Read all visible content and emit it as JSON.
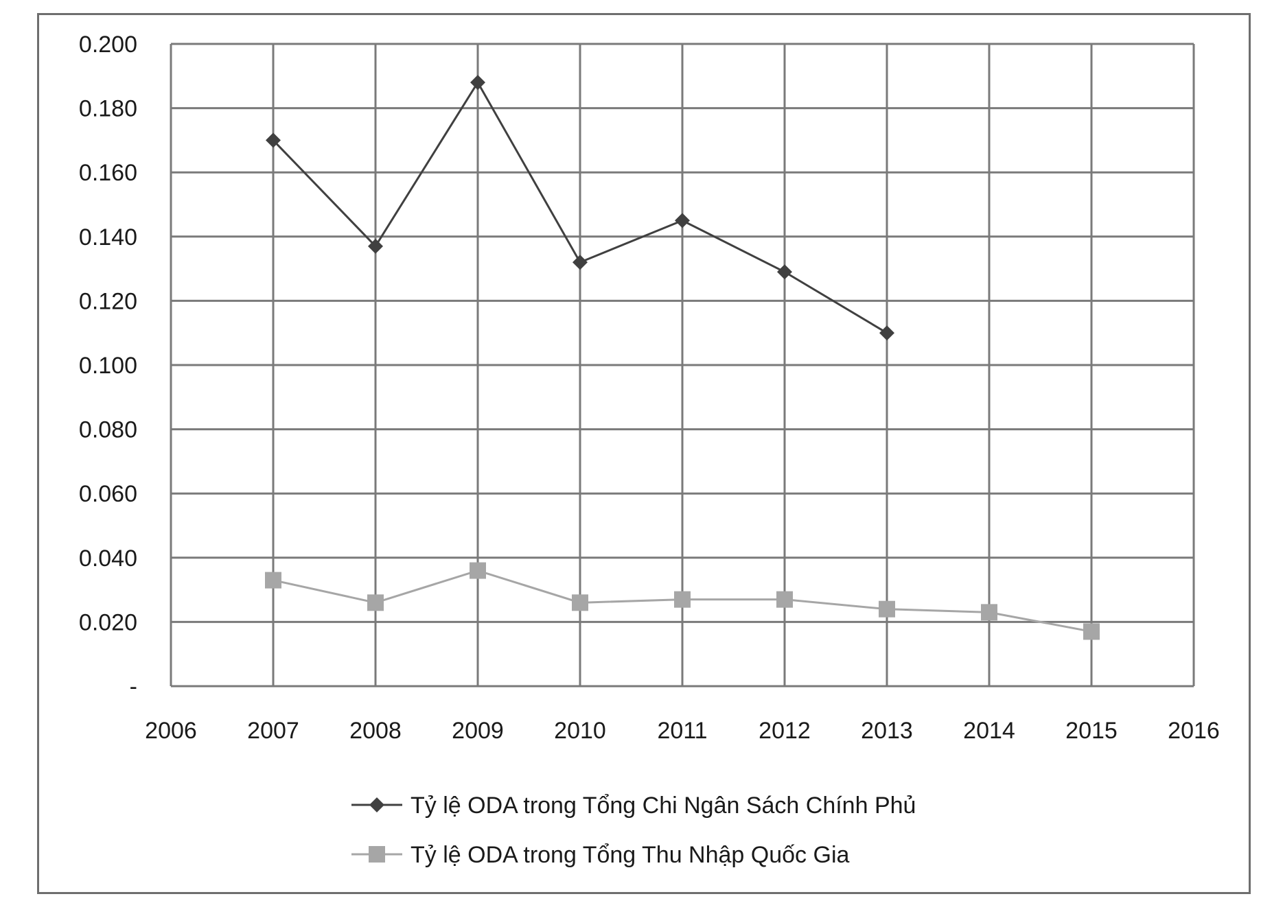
{
  "chart_data": {
    "type": "line",
    "title": "",
    "xlabel": "",
    "ylabel": "",
    "x": [
      2006,
      2007,
      2008,
      2009,
      2010,
      2011,
      2012,
      2013,
      2014,
      2015,
      2016
    ],
    "x_tick_labels": [
      "2006",
      "2007",
      "2008",
      "2009",
      "2010",
      "2011",
      "2012",
      "2013",
      "2014",
      "2015",
      "2016"
    ],
    "xlim": [
      2006,
      2016
    ],
    "ylim": [
      0,
      0.2
    ],
    "y_tick_labels": [
      "-",
      "0.020",
      "0.040",
      "0.060",
      "0.080",
      "0.100",
      "0.120",
      "0.140",
      "0.160",
      "0.180",
      "0.200"
    ],
    "y_ticks": [
      0,
      0.02,
      0.04,
      0.06,
      0.08,
      0.1,
      0.12,
      0.14,
      0.16,
      0.18,
      0.2
    ],
    "grid": true,
    "legend_position": "bottom",
    "series": [
      {
        "name": "Tỷ lệ ODA trong Tổng Chi Ngân Sách Chính Phủ",
        "marker": "diamond",
        "color": "#404040",
        "x": [
          2007,
          2008,
          2009,
          2010,
          2011,
          2012,
          2013
        ],
        "values": [
          0.17,
          0.137,
          0.188,
          0.132,
          0.145,
          0.129,
          0.11
        ]
      },
      {
        "name": "Tỷ lệ ODA trong Tổng Thu Nhập Quốc Gia",
        "marker": "square",
        "color": "#a6a6a6",
        "x": [
          2007,
          2008,
          2009,
          2010,
          2011,
          2012,
          2013,
          2014,
          2015
        ],
        "values": [
          0.033,
          0.026,
          0.036,
          0.026,
          0.027,
          0.027,
          0.024,
          0.023,
          0.017
        ]
      }
    ]
  }
}
